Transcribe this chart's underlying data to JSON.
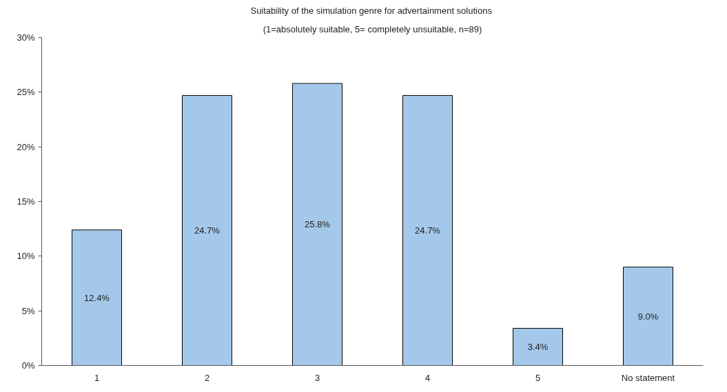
{
  "chart_data": {
    "type": "bar",
    "title": "Suitability of  the simulation genre for advertainment solutions",
    "subtitle": "(1=absolutely suitable, 5= completely unsuitable, n=89)",
    "categories": [
      "1",
      "2",
      "3",
      "4",
      "5",
      "No statement"
    ],
    "values": [
      12.4,
      24.7,
      25.8,
      24.7,
      3.4,
      9.0
    ],
    "value_labels": [
      "12.4%",
      "24.7%",
      "25.8%",
      "24.7%",
      "3.4%",
      "9.0%"
    ],
    "color": "#a4c8ea",
    "ylim": [
      0,
      30
    ],
    "yticks": [
      {
        "value": 0,
        "label": "0%"
      },
      {
        "value": 5,
        "label": "5%"
      },
      {
        "value": 10,
        "label": "10%"
      },
      {
        "value": 15,
        "label": "15%"
      },
      {
        "value": 20,
        "label": "20%"
      },
      {
        "value": 25,
        "label": "25%"
      },
      {
        "value": 30,
        "label": "30%"
      }
    ],
    "grid": false
  }
}
